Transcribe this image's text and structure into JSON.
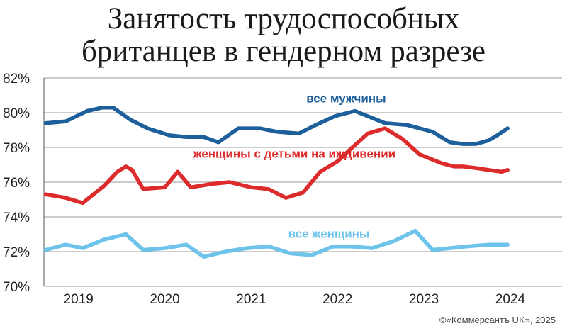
{
  "title_line1": "Занятость трудоспособных",
  "title_line2": "британцев в гендерном разрезе",
  "credit": "©«Коммерсантъ UK», 2025",
  "chart_data": {
    "type": "line",
    "ylim": [
      70,
      82
    ],
    "xlim": [
      2018.6,
      2024.6
    ],
    "y_ticks": [
      70,
      72,
      74,
      76,
      78,
      80,
      82
    ],
    "y_tick_labels": [
      "70%",
      "72%",
      "74%",
      "76%",
      "78%",
      "80%",
      "82%"
    ],
    "x_ticks": [
      2019,
      2020,
      2021,
      2022,
      2023,
      2024
    ],
    "x_tick_labels": [
      "2019",
      "2020",
      "2021",
      "2022",
      "2023",
      "2024"
    ],
    "grid": true,
    "series": [
      {
        "name": "все мужчины",
        "color": "#1d5f9a",
        "x": [
          2018.62,
          2018.85,
          2019.1,
          2019.28,
          2019.4,
          2019.6,
          2019.8,
          2020.05,
          2020.25,
          2020.45,
          2020.62,
          2020.85,
          2021.1,
          2021.3,
          2021.55,
          2021.75,
          2021.97,
          2022.2,
          2022.35,
          2022.55,
          2022.8,
          2023.1,
          2023.3,
          2023.45,
          2023.6,
          2023.75,
          2023.85,
          2023.97
        ],
        "values": [
          79.4,
          79.5,
          80.1,
          80.3,
          80.3,
          79.6,
          79.1,
          78.7,
          78.6,
          78.6,
          78.3,
          79.1,
          79.1,
          78.9,
          78.8,
          79.3,
          79.8,
          80.1,
          79.8,
          79.4,
          79.3,
          78.9,
          78.3,
          78.2,
          78.2,
          78.4,
          78.7,
          79.1
        ]
      },
      {
        "name": "женщины с детьми на иждивении",
        "color": "#dc2b2a",
        "x": [
          2018.62,
          2018.85,
          2019.05,
          2019.3,
          2019.45,
          2019.55,
          2019.62,
          2019.75,
          2020.0,
          2020.15,
          2020.3,
          2020.55,
          2020.75,
          2021.0,
          2021.2,
          2021.4,
          2021.6,
          2021.8,
          2022.0,
          2022.15,
          2022.35,
          2022.55,
          2022.75,
          2022.95,
          2023.2,
          2023.35,
          2023.45,
          2023.62,
          2023.75,
          2023.9,
          2023.97
        ],
        "values": [
          75.3,
          75.1,
          74.8,
          75.8,
          76.6,
          76.9,
          76.7,
          75.6,
          75.7,
          76.6,
          75.7,
          75.9,
          76.0,
          75.7,
          75.6,
          75.1,
          75.4,
          76.6,
          77.2,
          77.9,
          78.8,
          79.1,
          78.5,
          77.6,
          77.1,
          76.9,
          76.9,
          76.8,
          76.7,
          76.6,
          76.7
        ]
      },
      {
        "name": "все женщины",
        "color": "#6dc3ea",
        "x": [
          2018.62,
          2018.85,
          2019.05,
          2019.3,
          2019.55,
          2019.75,
          2020.0,
          2020.25,
          2020.45,
          2020.7,
          2020.95,
          2021.2,
          2021.45,
          2021.7,
          2021.95,
          2022.15,
          2022.4,
          2022.65,
          2022.9,
          2023.1,
          2023.3,
          2023.5,
          2023.75,
          2023.97
        ],
        "values": [
          72.1,
          72.4,
          72.2,
          72.7,
          73.0,
          72.1,
          72.2,
          72.4,
          71.7,
          72.0,
          72.2,
          72.3,
          71.9,
          71.8,
          72.3,
          72.3,
          72.2,
          72.6,
          73.2,
          72.1,
          72.2,
          72.3,
          72.4,
          72.4
        ]
      }
    ],
    "annotations": [
      {
        "series": 0,
        "text": "все мужчины",
        "x": 2022.1,
        "y": 80.6,
        "anchor": "middle"
      },
      {
        "series": 1,
        "text": "женщины с детьми на иждивении",
        "x": 2021.5,
        "y": 77.4,
        "anchor": "middle"
      },
      {
        "series": 2,
        "text": "все женщины",
        "x": 2021.9,
        "y": 72.8,
        "anchor": "middle"
      }
    ]
  }
}
